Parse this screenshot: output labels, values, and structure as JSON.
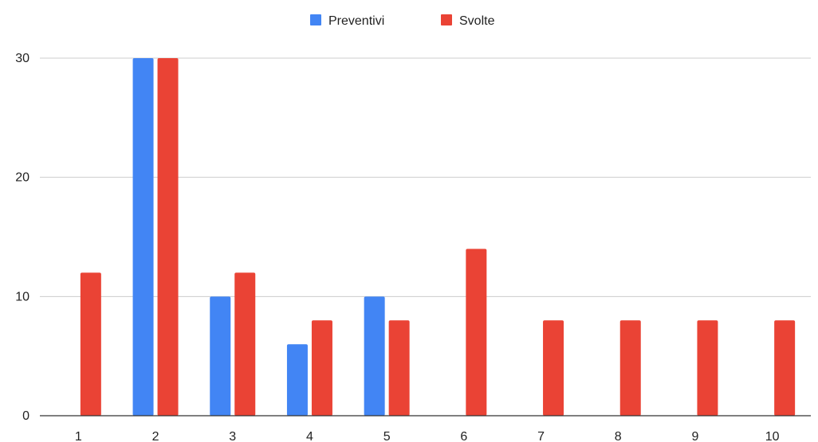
{
  "chart_data": {
    "type": "bar",
    "categories": [
      "1",
      "2",
      "3",
      "4",
      "5",
      "6",
      "7",
      "8",
      "9",
      "10"
    ],
    "series": [
      {
        "name": "Preventivi",
        "color": "#4285f4",
        "values": [
          0,
          30,
          10,
          6,
          10,
          0,
          0,
          0,
          0,
          0
        ]
      },
      {
        "name": "Svolte",
        "color": "#ea4335",
        "values": [
          12,
          30,
          12,
          8,
          8,
          14,
          8,
          8,
          8,
          8
        ]
      }
    ],
    "ylim": [
      0,
      30
    ],
    "yticks": [
      "0",
      "10",
      "20",
      "30"
    ],
    "grid": true,
    "legend_position": "top"
  }
}
